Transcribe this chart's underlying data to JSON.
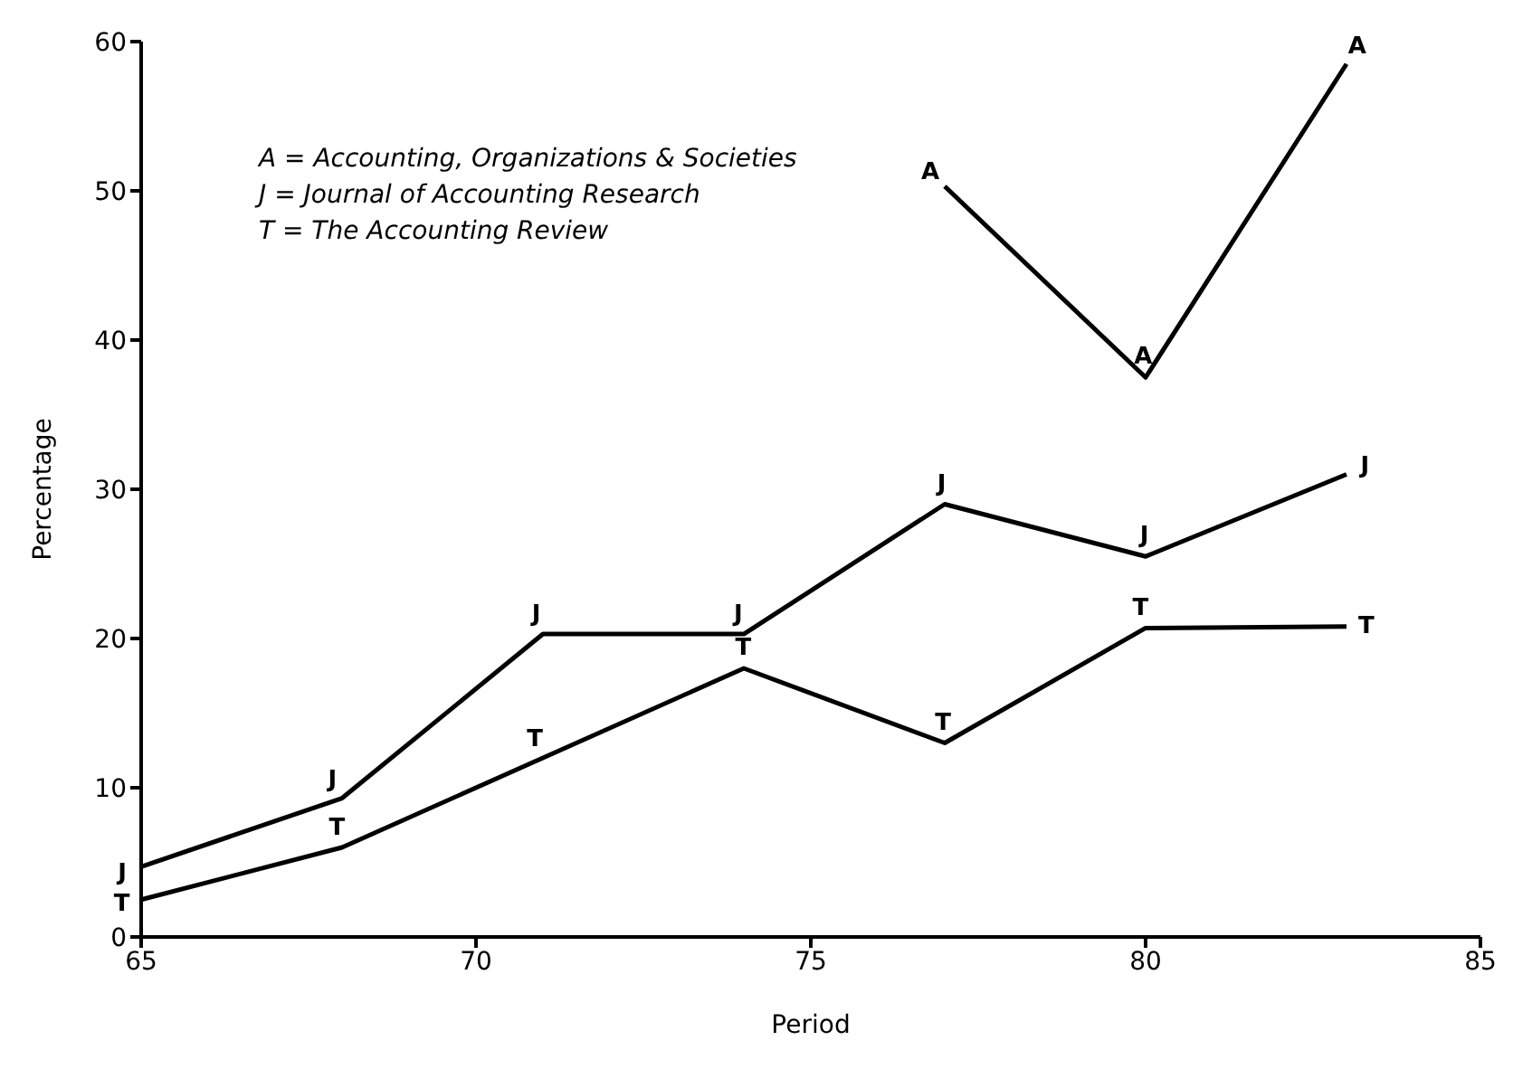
{
  "chart_data": {
    "type": "line",
    "xlabel": "Period",
    "ylabel": "Percentage",
    "x": [
      65,
      68,
      71,
      74,
      77,
      80,
      83
    ],
    "series": [
      {
        "name": "A",
        "color": "#000000",
        "values": [
          null,
          null,
          null,
          null,
          50.3,
          37.5,
          58.5
        ]
      },
      {
        "name": "J",
        "color": "#000000",
        "values": [
          4.7,
          9.3,
          20.3,
          20.3,
          29,
          25.5,
          31
        ]
      },
      {
        "name": "T",
        "color": "#000000",
        "values": [
          2.5,
          6,
          12,
          18,
          13,
          20.7,
          20.8
        ]
      }
    ],
    "xlim": [
      65,
      85
    ],
    "xticks": [
      65,
      70,
      75,
      80,
      85
    ],
    "ylim": [
      0,
      60
    ],
    "yticks": [
      0,
      10,
      20,
      30,
      40,
      50,
      60
    ],
    "grid": false,
    "marker": "none",
    "legend": false,
    "line_style": "solid",
    "annotations": [
      "A = Accounting, Organizations & Societies",
      "J = Journal of Accounting Research",
      "T = The Accounting Review"
    ]
  }
}
